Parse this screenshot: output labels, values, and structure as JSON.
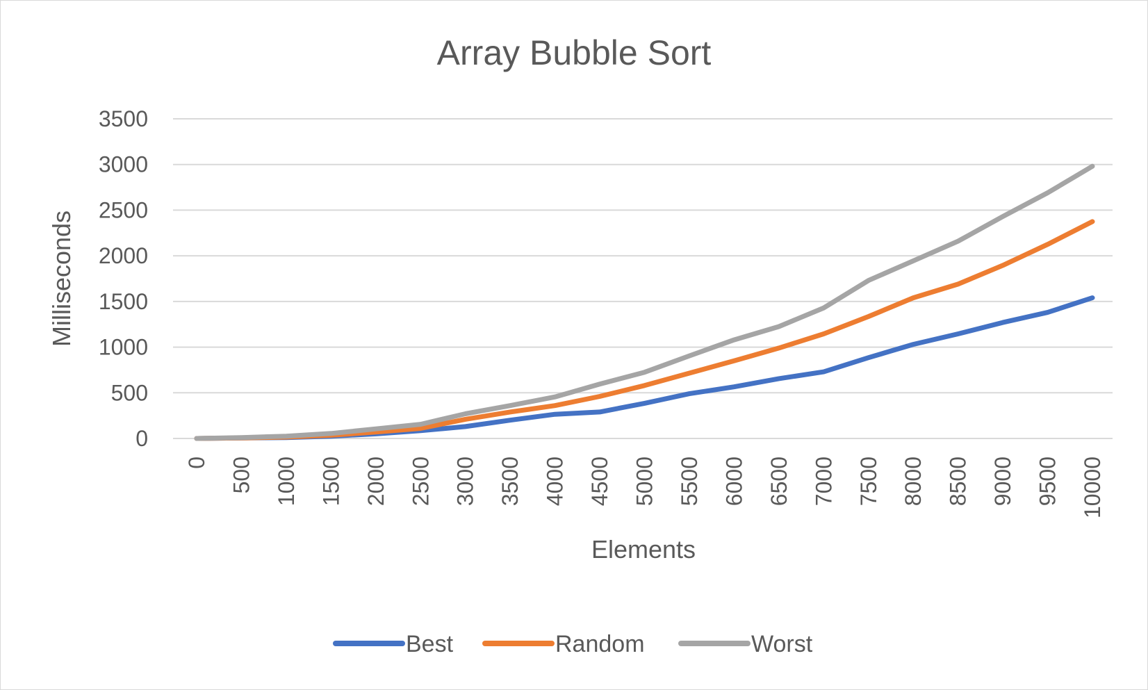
{
  "chart_data": {
    "type": "line",
    "title": "Array Bubble Sort",
    "xlabel": "Elements",
    "ylabel": "Milliseconds",
    "categories": [
      "0",
      "500",
      "1000",
      "1500",
      "2000",
      "2500",
      "3000",
      "3500",
      "4000",
      "4500",
      "5000",
      "5500",
      "6000",
      "6500",
      "7000",
      "7500",
      "8000",
      "8500",
      "9000",
      "9500",
      "10000"
    ],
    "ylim": [
      0,
      3500
    ],
    "yticks": [
      "0",
      "500",
      "1000",
      "1500",
      "2000",
      "2500",
      "3000",
      "3500"
    ],
    "grid": true,
    "legend_position": "bottom",
    "series": [
      {
        "name": "Best",
        "color": "#4472c4",
        "values": [
          0,
          5,
          10,
          25,
          50,
          85,
          130,
          200,
          265,
          290,
          385,
          490,
          565,
          655,
          730,
          885,
          1030,
          1145,
          1270,
          1380,
          1540
        ]
      },
      {
        "name": "Random",
        "color": "#ed7d31",
        "values": [
          0,
          5,
          15,
          35,
          70,
          110,
          210,
          290,
          360,
          460,
          580,
          715,
          850,
          990,
          1145,
          1335,
          1540,
          1690,
          1895,
          2125,
          2375
        ]
      },
      {
        "name": "Worst",
        "color": "#a5a5a5",
        "values": [
          0,
          10,
          25,
          55,
          105,
          155,
          270,
          360,
          455,
          595,
          725,
          905,
          1080,
          1225,
          1430,
          1730,
          1945,
          2160,
          2430,
          2690,
          2980
        ]
      }
    ]
  }
}
